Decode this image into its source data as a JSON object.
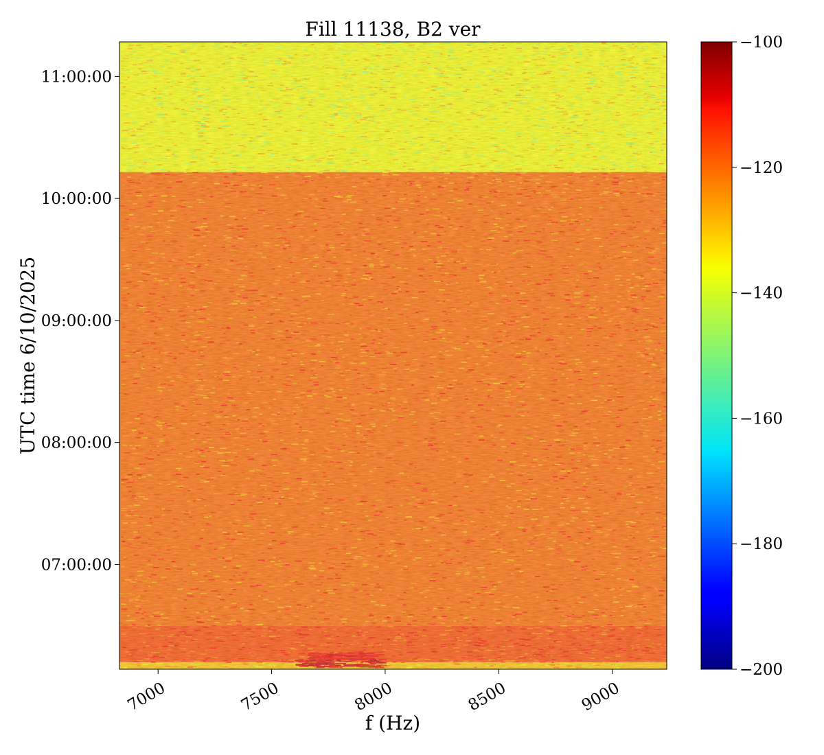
{
  "chart_data": {
    "type": "heatmap",
    "title": "Fill 11138, B2 ver",
    "xlabel": "f (Hz)",
    "ylabel": "UTC time 6/10/2025",
    "xlim": [
      6830,
      9240
    ],
    "ylim": [
      "06:08:30",
      "11:17:00"
    ],
    "x_ticks": [
      {
        "value": 7000,
        "label": "7000"
      },
      {
        "value": 7500,
        "label": "7500"
      },
      {
        "value": 8000,
        "label": "8000"
      },
      {
        "value": 8500,
        "label": "8500"
      },
      {
        "value": 9000,
        "label": "9000"
      }
    ],
    "y_ticks": [
      {
        "value": "07:00:00",
        "label": "07:00:00"
      },
      {
        "value": "08:00:00",
        "label": "08:00:00"
      },
      {
        "value": "09:00:00",
        "label": "09:00:00"
      },
      {
        "value": "10:00:00",
        "label": "10:00:00"
      },
      {
        "value": "11:00:00",
        "label": "11:00:00"
      }
    ],
    "colorbar": {
      "colormap": "jet",
      "range": [
        -200,
        -100
      ],
      "ticks": [
        {
          "value": -100,
          "label": "−100"
        },
        {
          "value": -120,
          "label": "−120"
        },
        {
          "value": -140,
          "label": "−140"
        },
        {
          "value": -160,
          "label": "−160"
        },
        {
          "value": -180,
          "label": "−180"
        },
        {
          "value": -200,
          "label": "−200"
        }
      ]
    },
    "regions": [
      {
        "time_from": "06:08:30",
        "time_to": "06:12:00",
        "level": -132
      },
      {
        "time_from": "06:12:00",
        "time_to": "06:30:00",
        "level": -120
      },
      {
        "time_from": "06:30:00",
        "time_to": "10:13:00",
        "level": -123
      },
      {
        "time_from": "10:13:00",
        "time_to": "11:17:00",
        "level": -138
      }
    ],
    "features": [
      {
        "time_from": "06:09:30",
        "time_to": "06:14:00",
        "f_from": 7600,
        "f_to": 7980,
        "level": -108
      },
      {
        "time_from": "06:13:30",
        "time_to": "06:17:00",
        "f_from": 7650,
        "f_to": 7950,
        "level": -112
      }
    ]
  }
}
